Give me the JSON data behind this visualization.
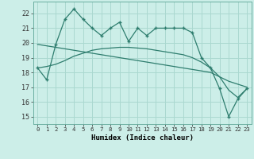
{
  "x": [
    0,
    1,
    2,
    3,
    4,
    5,
    6,
    7,
    8,
    9,
    10,
    11,
    12,
    13,
    14,
    15,
    16,
    17,
    18,
    19,
    20,
    21,
    22,
    23
  ],
  "y_main": [
    18.3,
    17.5,
    19.9,
    21.6,
    22.3,
    21.6,
    21.0,
    20.5,
    21.0,
    21.4,
    20.1,
    21.0,
    20.5,
    21.0,
    21.0,
    21.0,
    21.0,
    20.7,
    19.0,
    18.3,
    16.9,
    15.0,
    16.2,
    16.9
  ],
  "y_trend1": [
    19.9,
    19.8,
    19.7,
    19.6,
    19.5,
    19.4,
    19.3,
    19.2,
    19.1,
    19.0,
    18.9,
    18.8,
    18.7,
    18.6,
    18.5,
    18.4,
    18.3,
    18.2,
    18.1,
    18.0,
    17.7,
    17.4,
    17.2,
    17.0
  ],
  "y_trend2": [
    18.3,
    18.4,
    18.55,
    18.8,
    19.1,
    19.3,
    19.5,
    19.6,
    19.65,
    19.7,
    19.7,
    19.65,
    19.6,
    19.5,
    19.4,
    19.3,
    19.2,
    19.0,
    18.7,
    18.3,
    17.7,
    16.8,
    16.3,
    16.9
  ],
  "color": "#2e7d6e",
  "bg_color": "#cceee8",
  "grid_color": "#aad8d0",
  "xlabel": "Humidex (Indice chaleur)",
  "ylim": [
    14.5,
    22.8
  ],
  "xlim": [
    -0.5,
    23.5
  ],
  "yticks": [
    15,
    16,
    17,
    18,
    19,
    20,
    21,
    22
  ],
  "xticks": [
    0,
    1,
    2,
    3,
    4,
    5,
    6,
    7,
    8,
    9,
    10,
    11,
    12,
    13,
    14,
    15,
    16,
    17,
    18,
    19,
    20,
    21,
    22,
    23
  ]
}
